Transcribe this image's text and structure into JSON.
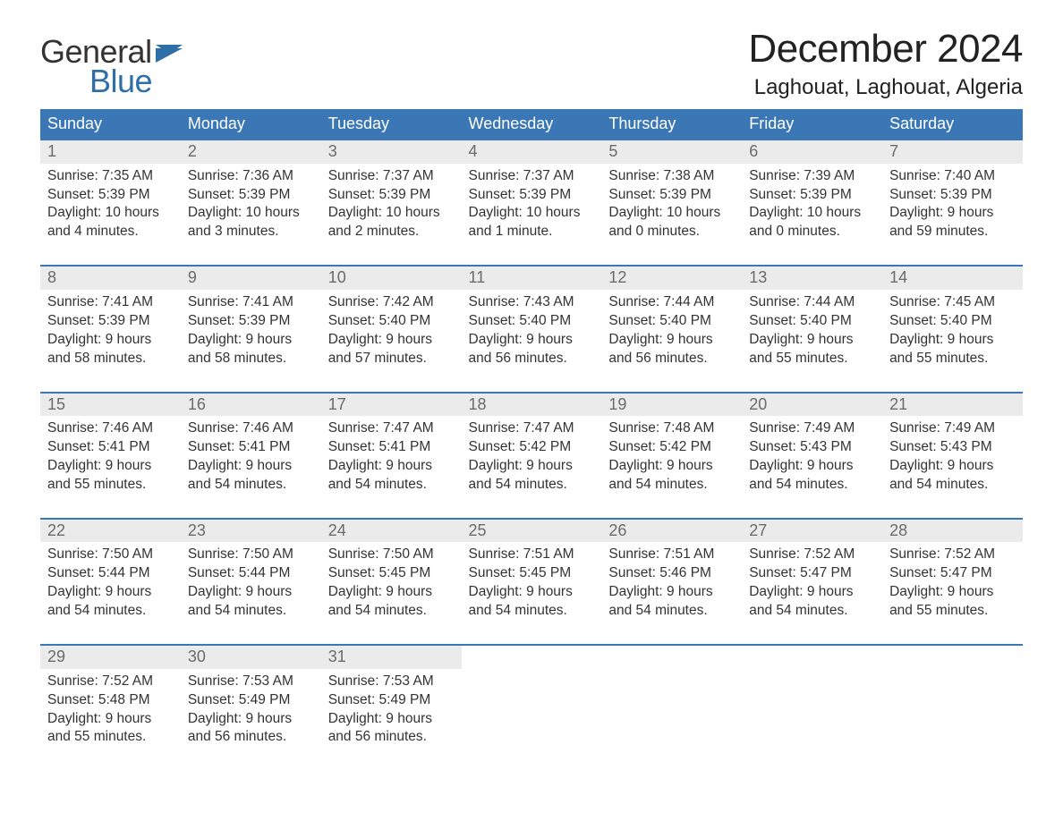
{
  "brand": {
    "word1": "General",
    "word2": "Blue",
    "accent_color": "#2f6fa7"
  },
  "title": "December 2024",
  "location": "Laghouat, Laghouat, Algeria",
  "colors": {
    "header_bg": "#3b77b5",
    "header_text": "#ffffff",
    "daynum_bg": "#ebebeb",
    "daynum_text": "#6b6b6b",
    "body_text": "#333333",
    "rule": "#3b77b5",
    "page_bg": "#ffffff"
  },
  "typography": {
    "title_fontsize": 44,
    "location_fontsize": 24,
    "dayheader_fontsize": 18,
    "daynum_fontsize": 18,
    "body_fontsize": 15.5,
    "font_family": "Arial"
  },
  "layout": {
    "columns": 7,
    "rows": 5,
    "start_weekday": "Sunday"
  },
  "day_headers": [
    "Sunday",
    "Monday",
    "Tuesday",
    "Wednesday",
    "Thursday",
    "Friday",
    "Saturday"
  ],
  "weeks": [
    [
      {
        "n": "1",
        "sunrise": "Sunrise: 7:35 AM",
        "sunset": "Sunset: 5:39 PM",
        "d1": "Daylight: 10 hours",
        "d2": "and 4 minutes."
      },
      {
        "n": "2",
        "sunrise": "Sunrise: 7:36 AM",
        "sunset": "Sunset: 5:39 PM",
        "d1": "Daylight: 10 hours",
        "d2": "and 3 minutes."
      },
      {
        "n": "3",
        "sunrise": "Sunrise: 7:37 AM",
        "sunset": "Sunset: 5:39 PM",
        "d1": "Daylight: 10 hours",
        "d2": "and 2 minutes."
      },
      {
        "n": "4",
        "sunrise": "Sunrise: 7:37 AM",
        "sunset": "Sunset: 5:39 PM",
        "d1": "Daylight: 10 hours",
        "d2": "and 1 minute."
      },
      {
        "n": "5",
        "sunrise": "Sunrise: 7:38 AM",
        "sunset": "Sunset: 5:39 PM",
        "d1": "Daylight: 10 hours",
        "d2": "and 0 minutes."
      },
      {
        "n": "6",
        "sunrise": "Sunrise: 7:39 AM",
        "sunset": "Sunset: 5:39 PM",
        "d1": "Daylight: 10 hours",
        "d2": "and 0 minutes."
      },
      {
        "n": "7",
        "sunrise": "Sunrise: 7:40 AM",
        "sunset": "Sunset: 5:39 PM",
        "d1": "Daylight: 9 hours",
        "d2": "and 59 minutes."
      }
    ],
    [
      {
        "n": "8",
        "sunrise": "Sunrise: 7:41 AM",
        "sunset": "Sunset: 5:39 PM",
        "d1": "Daylight: 9 hours",
        "d2": "and 58 minutes."
      },
      {
        "n": "9",
        "sunrise": "Sunrise: 7:41 AM",
        "sunset": "Sunset: 5:39 PM",
        "d1": "Daylight: 9 hours",
        "d2": "and 58 minutes."
      },
      {
        "n": "10",
        "sunrise": "Sunrise: 7:42 AM",
        "sunset": "Sunset: 5:40 PM",
        "d1": "Daylight: 9 hours",
        "d2": "and 57 minutes."
      },
      {
        "n": "11",
        "sunrise": "Sunrise: 7:43 AM",
        "sunset": "Sunset: 5:40 PM",
        "d1": "Daylight: 9 hours",
        "d2": "and 56 minutes."
      },
      {
        "n": "12",
        "sunrise": "Sunrise: 7:44 AM",
        "sunset": "Sunset: 5:40 PM",
        "d1": "Daylight: 9 hours",
        "d2": "and 56 minutes."
      },
      {
        "n": "13",
        "sunrise": "Sunrise: 7:44 AM",
        "sunset": "Sunset: 5:40 PM",
        "d1": "Daylight: 9 hours",
        "d2": "and 55 minutes."
      },
      {
        "n": "14",
        "sunrise": "Sunrise: 7:45 AM",
        "sunset": "Sunset: 5:40 PM",
        "d1": "Daylight: 9 hours",
        "d2": "and 55 minutes."
      }
    ],
    [
      {
        "n": "15",
        "sunrise": "Sunrise: 7:46 AM",
        "sunset": "Sunset: 5:41 PM",
        "d1": "Daylight: 9 hours",
        "d2": "and 55 minutes."
      },
      {
        "n": "16",
        "sunrise": "Sunrise: 7:46 AM",
        "sunset": "Sunset: 5:41 PM",
        "d1": "Daylight: 9 hours",
        "d2": "and 54 minutes."
      },
      {
        "n": "17",
        "sunrise": "Sunrise: 7:47 AM",
        "sunset": "Sunset: 5:41 PM",
        "d1": "Daylight: 9 hours",
        "d2": "and 54 minutes."
      },
      {
        "n": "18",
        "sunrise": "Sunrise: 7:47 AM",
        "sunset": "Sunset: 5:42 PM",
        "d1": "Daylight: 9 hours",
        "d2": "and 54 minutes."
      },
      {
        "n": "19",
        "sunrise": "Sunrise: 7:48 AM",
        "sunset": "Sunset: 5:42 PM",
        "d1": "Daylight: 9 hours",
        "d2": "and 54 minutes."
      },
      {
        "n": "20",
        "sunrise": "Sunrise: 7:49 AM",
        "sunset": "Sunset: 5:43 PM",
        "d1": "Daylight: 9 hours",
        "d2": "and 54 minutes."
      },
      {
        "n": "21",
        "sunrise": "Sunrise: 7:49 AM",
        "sunset": "Sunset: 5:43 PM",
        "d1": "Daylight: 9 hours",
        "d2": "and 54 minutes."
      }
    ],
    [
      {
        "n": "22",
        "sunrise": "Sunrise: 7:50 AM",
        "sunset": "Sunset: 5:44 PM",
        "d1": "Daylight: 9 hours",
        "d2": "and 54 minutes."
      },
      {
        "n": "23",
        "sunrise": "Sunrise: 7:50 AM",
        "sunset": "Sunset: 5:44 PM",
        "d1": "Daylight: 9 hours",
        "d2": "and 54 minutes."
      },
      {
        "n": "24",
        "sunrise": "Sunrise: 7:50 AM",
        "sunset": "Sunset: 5:45 PM",
        "d1": "Daylight: 9 hours",
        "d2": "and 54 minutes."
      },
      {
        "n": "25",
        "sunrise": "Sunrise: 7:51 AM",
        "sunset": "Sunset: 5:45 PM",
        "d1": "Daylight: 9 hours",
        "d2": "and 54 minutes."
      },
      {
        "n": "26",
        "sunrise": "Sunrise: 7:51 AM",
        "sunset": "Sunset: 5:46 PM",
        "d1": "Daylight: 9 hours",
        "d2": "and 54 minutes."
      },
      {
        "n": "27",
        "sunrise": "Sunrise: 7:52 AM",
        "sunset": "Sunset: 5:47 PM",
        "d1": "Daylight: 9 hours",
        "d2": "and 54 minutes."
      },
      {
        "n": "28",
        "sunrise": "Sunrise: 7:52 AM",
        "sunset": "Sunset: 5:47 PM",
        "d1": "Daylight: 9 hours",
        "d2": "and 55 minutes."
      }
    ],
    [
      {
        "n": "29",
        "sunrise": "Sunrise: 7:52 AM",
        "sunset": "Sunset: 5:48 PM",
        "d1": "Daylight: 9 hours",
        "d2": "and 55 minutes."
      },
      {
        "n": "30",
        "sunrise": "Sunrise: 7:53 AM",
        "sunset": "Sunset: 5:49 PM",
        "d1": "Daylight: 9 hours",
        "d2": "and 56 minutes."
      },
      {
        "n": "31",
        "sunrise": "Sunrise: 7:53 AM",
        "sunset": "Sunset: 5:49 PM",
        "d1": "Daylight: 9 hours",
        "d2": "and 56 minutes."
      },
      null,
      null,
      null,
      null
    ]
  ]
}
